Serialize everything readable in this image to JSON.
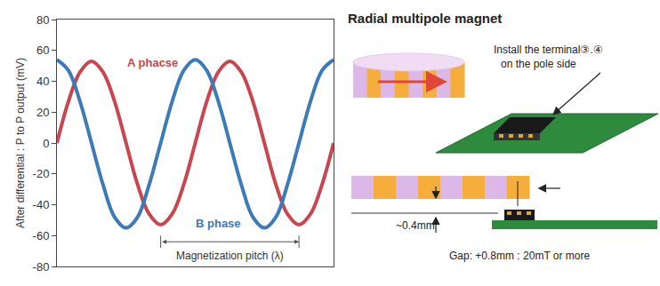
{
  "chart_data": {
    "type": "line",
    "y_label": "After differential : P to P output (mV)",
    "x": [
      0,
      30,
      60,
      90,
      120,
      150,
      180,
      210,
      240,
      270,
      300,
      330,
      360,
      390,
      420,
      450,
      480,
      510,
      540,
      570,
      600,
      630,
      660,
      690,
      720
    ],
    "series": [
      {
        "name": "A phacse",
        "color": "#c8464e",
        "label_x": 250,
        "label_y": 52,
        "values": [
          0,
          27,
          46,
          53,
          46,
          27,
          0,
          -27,
          -46,
          -53,
          -46,
          -27,
          0,
          27,
          46,
          53,
          46,
          27,
          0,
          -27,
          -46,
          -53,
          -46,
          -27,
          0
        ]
      },
      {
        "name": "B phase",
        "color": "#3d7ab8",
        "label_x": 420,
        "label_y": -52,
        "values": [
          54,
          47,
          27,
          0,
          -27,
          -48,
          -55,
          -48,
          -27,
          0,
          27,
          47,
          54,
          47,
          27,
          0,
          -27,
          -48,
          -55,
          -48,
          -27,
          0,
          27,
          47,
          54
        ]
      }
    ],
    "annotations": [
      {
        "text": "Magnetization pitch (λ)",
        "x_from": 270,
        "x_to": 630,
        "y": -64,
        "label_y": -73
      }
    ],
    "xlim": [
      0,
      720
    ],
    "ylim": [
      -80,
      80
    ],
    "yticks": [
      -80,
      -60,
      -40,
      -20,
      0,
      20,
      40,
      60,
      80
    ],
    "grid": false,
    "tick_labels": "y"
  },
  "diagram": {
    "title": "Radial multipole magnet",
    "note": [
      "Install the terminal③.④",
      "on the pole side"
    ],
    "gap_label": "~0.4mm",
    "spec": "Gap: +0.8mm : 20mT or more"
  }
}
